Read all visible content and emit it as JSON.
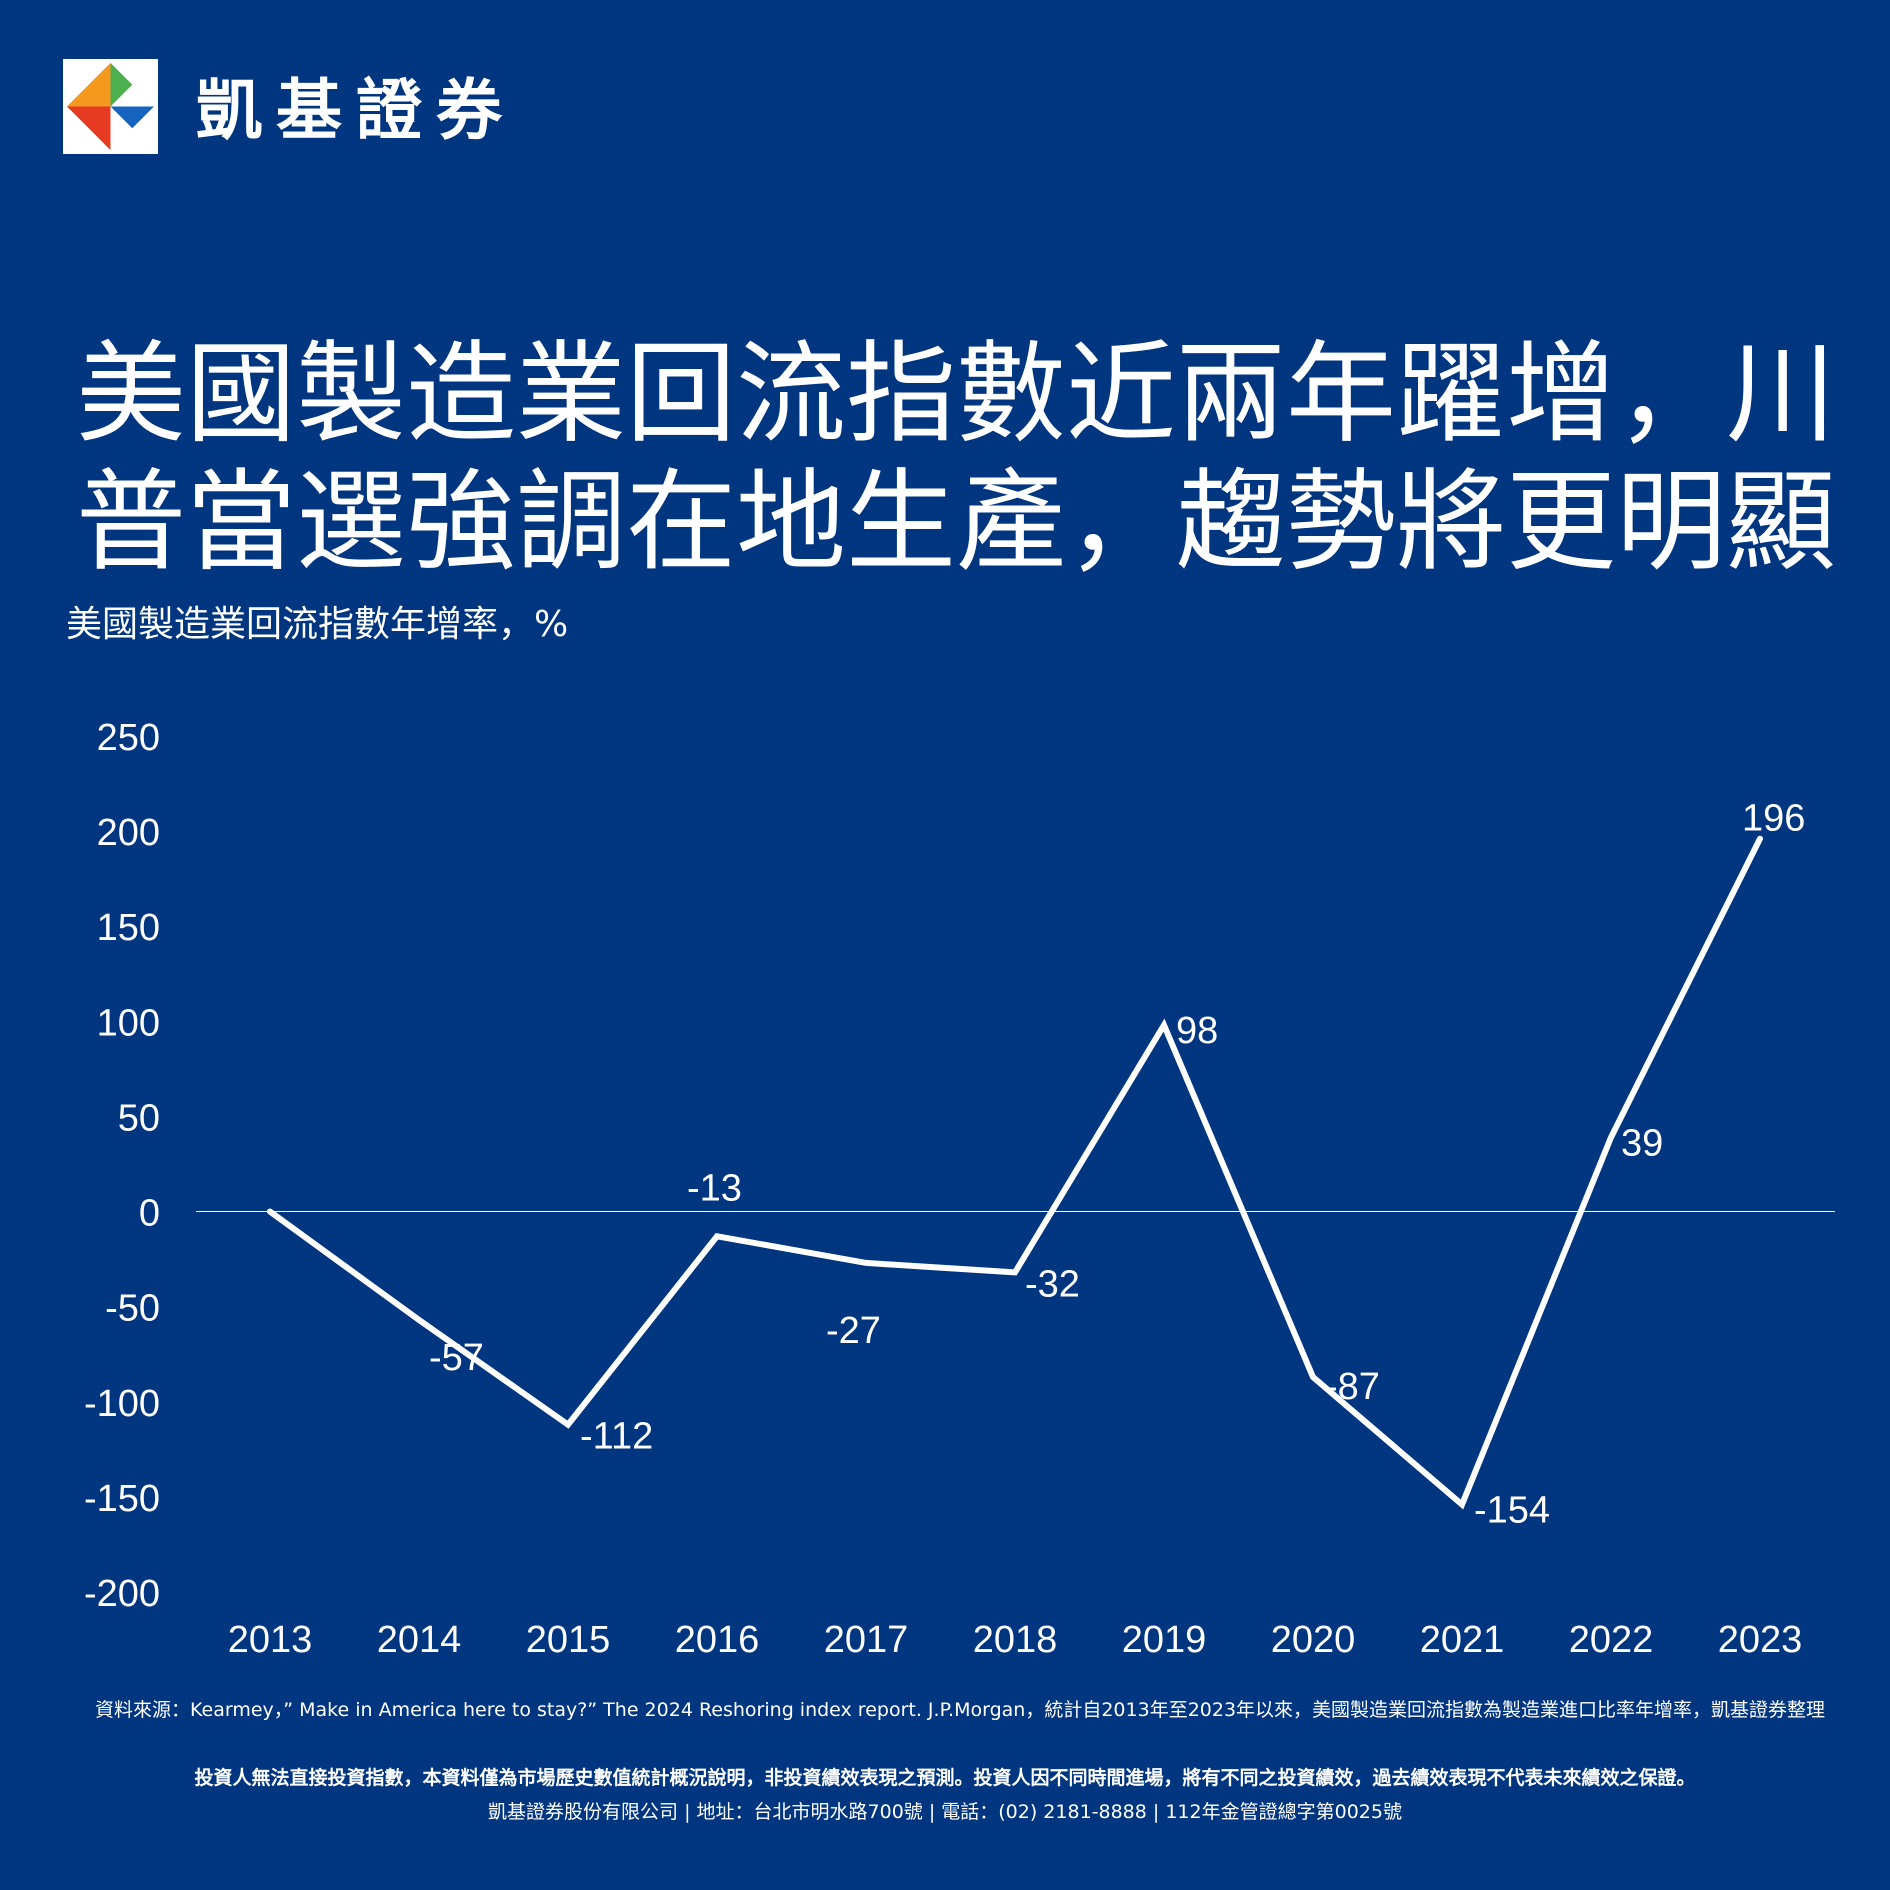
{
  "brand": {
    "logo_icon": "kgi-diamond-logo-icon",
    "name": "凱基證券"
  },
  "headline": {
    "line1": "美國製造業回流指數近兩年躍增，川",
    "line2": "普當選強調在地生產，趨勢將更明顯"
  },
  "colors": {
    "background": "#003580",
    "line": "#ffffff",
    "text": "#ffffff"
  },
  "chart_data": {
    "type": "line",
    "title": "",
    "subtitle": "美國製造業回流指數年增率，%",
    "xlabel": "",
    "ylabel": "",
    "categories": [
      "2013",
      "2014",
      "2015",
      "2016",
      "2017",
      "2018",
      "2019",
      "2020",
      "2021",
      "2022",
      "2023"
    ],
    "values": [
      0,
      -57,
      -112,
      -13,
      -27,
      -32,
      98,
      -87,
      -154,
      39,
      196
    ],
    "data_labels": [
      "",
      "-57",
      "-112",
      "-13",
      "-27",
      "-32",
      "98",
      "-87",
      "-154",
      "39",
      "196"
    ],
    "yticks": [
      "250",
      "200",
      "150",
      "100",
      "50",
      "0",
      "-50",
      "-100",
      "-150",
      "-200"
    ],
    "ylim": [
      -200,
      250
    ],
    "zero_line": true,
    "grid": false,
    "legend": "none"
  },
  "footer": {
    "source": "資料來源：Kearmey，” Make in America here to stay?” The 2024 Reshoring index report. J.P.Morgan，統計自2013年至2023年以來，美國製造業回流指數為製造業進口比率年增率，凱基證券整理",
    "disclaimer": "投資人無法直接投資指數，本資料僅為市場歷史數值統計概況說明，非投資績效表現之預測。投資人因不同時間進場，將有不同之投資績效，過去績效表現不代表未來績效之保證。",
    "company": "凱基證券股份有限公司 | 地址：台北市明水路700號 | 電話：(02) 2181-8888 | 112年金管證總字第0025號"
  }
}
